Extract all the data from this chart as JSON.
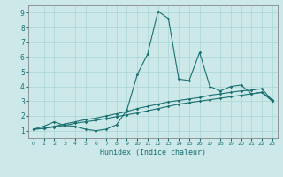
{
  "xlabel": "Humidex (Indice chaleur)",
  "background_color": "#cce8e8",
  "grid_color": "#aad4d4",
  "line_color": "#1a7070",
  "xlim": [
    -0.5,
    23.5
  ],
  "ylim": [
    0.5,
    9.5
  ],
  "x_ticks": [
    0,
    1,
    2,
    3,
    4,
    5,
    6,
    7,
    8,
    9,
    10,
    11,
    12,
    13,
    14,
    15,
    16,
    17,
    18,
    19,
    20,
    21,
    22,
    23
  ],
  "y_ticks": [
    1,
    2,
    3,
    4,
    5,
    6,
    7,
    8,
    9
  ],
  "series1_x": [
    0,
    1,
    2,
    3,
    4,
    5,
    6,
    7,
    8,
    9,
    10,
    11,
    12,
    13,
    14,
    15,
    16,
    17,
    18,
    19,
    20,
    21,
    22,
    23
  ],
  "series1_y": [
    1.1,
    1.3,
    1.6,
    1.35,
    1.3,
    1.1,
    1.0,
    1.1,
    1.4,
    2.4,
    4.8,
    6.2,
    9.1,
    8.6,
    4.5,
    4.4,
    6.3,
    4.0,
    3.7,
    4.0,
    4.1,
    3.5,
    3.6,
    3.1
  ],
  "series2_x": [
    0,
    1,
    2,
    3,
    4,
    5,
    6,
    7,
    8,
    9,
    10,
    11,
    12,
    13,
    14,
    15,
    16,
    17,
    18,
    19,
    20,
    21,
    22,
    23
  ],
  "series2_y": [
    1.1,
    1.15,
    1.3,
    1.45,
    1.6,
    1.75,
    1.85,
    2.0,
    2.15,
    2.3,
    2.5,
    2.65,
    2.8,
    2.95,
    3.05,
    3.15,
    3.25,
    3.4,
    3.5,
    3.6,
    3.7,
    3.75,
    3.85,
    3.05
  ],
  "series3_x": [
    0,
    1,
    2,
    3,
    4,
    5,
    6,
    7,
    8,
    9,
    10,
    11,
    12,
    13,
    14,
    15,
    16,
    17,
    18,
    19,
    20,
    21,
    22,
    23
  ],
  "series3_y": [
    1.1,
    1.15,
    1.25,
    1.35,
    1.5,
    1.6,
    1.7,
    1.82,
    1.95,
    2.08,
    2.2,
    2.35,
    2.5,
    2.65,
    2.8,
    2.9,
    3.0,
    3.1,
    3.2,
    3.3,
    3.4,
    3.5,
    3.6,
    3.0
  ]
}
